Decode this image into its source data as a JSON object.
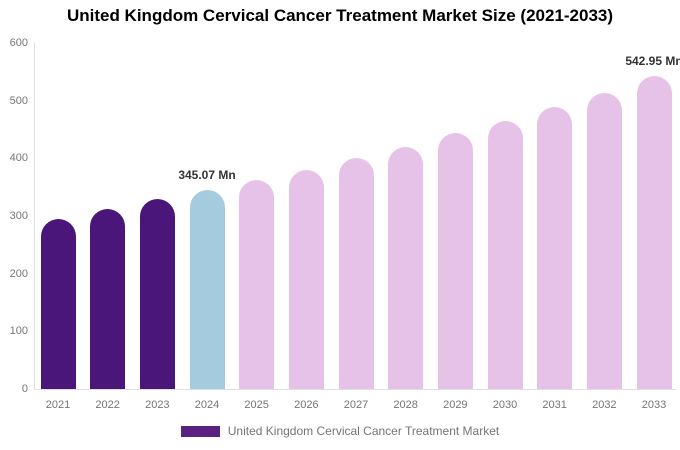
{
  "title": "United Kingdom Cervical Cancer Treatment Market Size (2021-2033)",
  "legend": {
    "label": "United Kingdom Cervical Cancer Treatment Market",
    "swatch_color": "#5b2182"
  },
  "colors": {
    "historical_bar": "#4a1679",
    "base_year_bar": "#a5cbdf",
    "forecast_bar": "#e6c2e9",
    "axis_line": "#e0e0e0",
    "tick_text": "#757575",
    "annotation_text": "#333333",
    "title_text": "#000000"
  },
  "chart_data": {
    "type": "bar",
    "title": "United Kingdom Cervical Cancer Treatment Market Size (2021-2033)",
    "categories": [
      "2021",
      "2022",
      "2023",
      "2024",
      "2025",
      "2026",
      "2027",
      "2028",
      "2029",
      "2030",
      "2031",
      "2032",
      "2033"
    ],
    "values": [
      295,
      312,
      330,
      345.07,
      362,
      380,
      400,
      420,
      444,
      465,
      489,
      513,
      542.95
    ],
    "unit": "Mn",
    "bar_roles": [
      "historical",
      "historical",
      "historical",
      "base_year",
      "forecast",
      "forecast",
      "forecast",
      "forecast",
      "forecast",
      "forecast",
      "forecast",
      "forecast",
      "forecast"
    ],
    "labeled_points": [
      {
        "category": "2024",
        "label": "345.07 Mn"
      },
      {
        "category": "2033",
        "label": "542.95 Mn"
      }
    ],
    "xlabel": "",
    "ylabel": "",
    "ylim": [
      0,
      600
    ],
    "yticks": [
      0,
      100,
      200,
      300,
      400,
      500,
      600
    ],
    "grid": false,
    "legend_entries": [
      "United Kingdom Cervical Cancer Treatment Market"
    ],
    "legend_position": "bottom"
  }
}
